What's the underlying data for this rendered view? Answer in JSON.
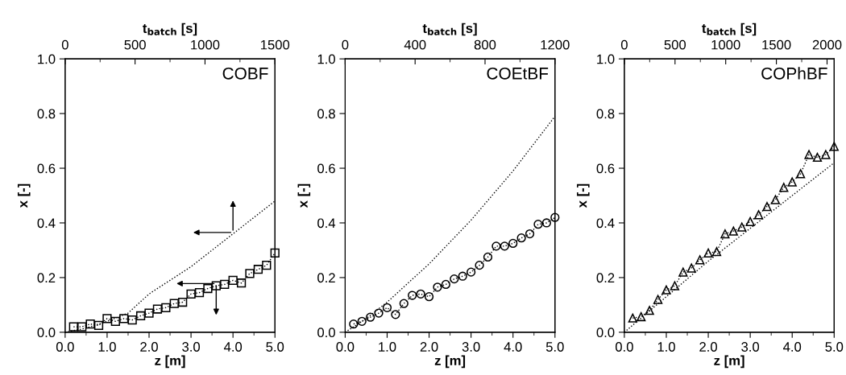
{
  "chart_data": [
    {
      "type": "line",
      "xlabel": "z [m]",
      "ylabel": "x [-]",
      "x2label": "t$_{batch}$ [s]",
      "annotations": [
        "COBF"
      ],
      "xlim": [
        0,
        5
      ],
      "xticks": [
        {
          "value": 0,
          "label": "0.0"
        },
        {
          "value": 1,
          "label": "1.0"
        },
        {
          "value": 2,
          "label": "2.0"
        },
        {
          "value": 3,
          "label": "3.0"
        },
        {
          "value": 4,
          "label": "4.0"
        },
        {
          "value": 5,
          "label": "5.0"
        }
      ],
      "ylim": [
        0,
        1
      ],
      "yticks": [
        {
          "value": 0,
          "label": "0.0"
        },
        {
          "value": 0.2,
          "label": "0.2"
        },
        {
          "value": 0.4,
          "label": "0.4"
        },
        {
          "value": 0.6,
          "label": "0.6"
        },
        {
          "value": 0.8,
          "label": "0.8"
        },
        {
          "value": 1,
          "label": "1.0"
        }
      ],
      "x2lim": [
        0,
        1500
      ],
      "x2ticks": [
        0,
        500,
        1000,
        1500
      ],
      "series": [
        {
          "color": "#000000",
          "marker": "square",
          "line_style": "dotted",
          "x": [
            0.2,
            0.4,
            0.6,
            0.8,
            1.0,
            1.2,
            1.4,
            1.6,
            1.8,
            2.0,
            2.2,
            2.4,
            2.6,
            2.8,
            3.0,
            3.2,
            3.4,
            3.6,
            3.8,
            4.0,
            4.2,
            4.4,
            4.6,
            4.8,
            5.0
          ],
          "values": [
            0.02,
            0.02,
            0.03,
            0.025,
            0.05,
            0.04,
            0.05,
            0.045,
            0.06,
            0.07,
            0.085,
            0.09,
            0.105,
            0.11,
            0.14,
            0.145,
            0.16,
            0.17,
            0.175,
            0.19,
            0.18,
            0.215,
            0.23,
            0.245,
            0.29
          ]
        },
        {
          "color": "#000000",
          "marker": "none",
          "line_style": "dotted",
          "axis": "x2",
          "x": [
            0,
            150,
            300,
            450,
            600,
            750,
            900,
            1050,
            1200,
            1350,
            1500
          ],
          "values": [
            0,
            0.015,
            0.04,
            0.07,
            0.14,
            0.19,
            0.24,
            0.3,
            0.36,
            0.42,
            0.48
          ]
        }
      ]
    },
    {
      "type": "line",
      "xlabel": "z [m]",
      "ylabel": "x [-]",
      "x2label": "t$_{batch}$ [s]",
      "annotations": [
        "COEtBF"
      ],
      "xlim": [
        0,
        5
      ],
      "xticks": [
        {
          "value": 0,
          "label": "0.0"
        },
        {
          "value": 1,
          "label": "1.0"
        },
        {
          "value": 2,
          "label": "2.0"
        },
        {
          "value": 3,
          "label": "3.0"
        },
        {
          "value": 4,
          "label": "4.0"
        },
        {
          "value": 5,
          "label": "5.0"
        }
      ],
      "ylim": [
        0,
        1
      ],
      "yticks": [
        {
          "value": 0,
          "label": "0.0"
        },
        {
          "value": 0.2,
          "label": "0.2"
        },
        {
          "value": 0.4,
          "label": "0.4"
        },
        {
          "value": 0.6,
          "label": "0.6"
        },
        {
          "value": 0.8,
          "label": "0.8"
        },
        {
          "value": 1,
          "label": "1.0"
        }
      ],
      "x2lim": [
        0,
        1200
      ],
      "x2ticks": [
        0,
        400,
        800,
        1200
      ],
      "series": [
        {
          "color": "#000000",
          "marker": "circle",
          "line_style": "dotted",
          "x": [
            0.2,
            0.4,
            0.6,
            0.8,
            1.0,
            1.2,
            1.4,
            1.6,
            1.8,
            2.0,
            2.2,
            2.4,
            2.6,
            2.8,
            3.0,
            3.2,
            3.4,
            3.6,
            3.8,
            4.0,
            4.2,
            4.4,
            4.6,
            4.8,
            5.0
          ],
          "values": [
            0.03,
            0.04,
            0.055,
            0.07,
            0.09,
            0.065,
            0.105,
            0.135,
            0.14,
            0.13,
            0.165,
            0.175,
            0.195,
            0.205,
            0.22,
            0.245,
            0.275,
            0.315,
            0.315,
            0.325,
            0.345,
            0.36,
            0.395,
            0.4,
            0.42
          ]
        },
        {
          "color": "#000000",
          "marker": "none",
          "line_style": "dotted",
          "axis": "x2",
          "x": [
            0,
            120,
            240,
            360,
            480,
            600,
            720,
            840,
            960,
            1080,
            1200
          ],
          "values": [
            0,
            0.05,
            0.11,
            0.18,
            0.25,
            0.33,
            0.41,
            0.5,
            0.59,
            0.69,
            0.79
          ]
        }
      ]
    },
    {
      "type": "line",
      "xlabel": "z [m]",
      "ylabel": "x [-]",
      "x2label": "t$_{batch}$ [s]",
      "annotations": [
        "COPhBF"
      ],
      "xlim": [
        0,
        5
      ],
      "xticks": [
        {
          "value": 0,
          "label": "0.0"
        },
        {
          "value": 1,
          "label": "1.0"
        },
        {
          "value": 2,
          "label": "2.0"
        },
        {
          "value": 3,
          "label": "3.0"
        },
        {
          "value": 4,
          "label": "4.0"
        },
        {
          "value": 5,
          "label": "5.0"
        }
      ],
      "ylim": [
        0,
        1
      ],
      "yticks": [
        {
          "value": 0,
          "label": "0.0"
        },
        {
          "value": 0.2,
          "label": "0.2"
        },
        {
          "value": 0.4,
          "label": "0.4"
        },
        {
          "value": 0.6,
          "label": "0.6"
        },
        {
          "value": 0.8,
          "label": "0.8"
        },
        {
          "value": 1,
          "label": "1.0"
        }
      ],
      "x2lim": [
        0,
        2070
      ],
      "x2ticks": [
        0,
        500,
        1000,
        1500,
        2000
      ],
      "series": [
        {
          "color": "#000000",
          "marker": "triangle",
          "line_style": "dotted",
          "x": [
            0.2,
            0.4,
            0.6,
            0.8,
            1.0,
            1.2,
            1.4,
            1.6,
            1.8,
            2.0,
            2.2,
            2.4,
            2.6,
            2.8,
            3.0,
            3.2,
            3.4,
            3.6,
            3.8,
            4.0,
            4.2,
            4.4,
            4.6,
            4.8,
            5.0
          ],
          "values": [
            0.052,
            0.057,
            0.08,
            0.12,
            0.155,
            0.17,
            0.22,
            0.235,
            0.265,
            0.29,
            0.295,
            0.36,
            0.37,
            0.385,
            0.405,
            0.43,
            0.46,
            0.485,
            0.53,
            0.55,
            0.58,
            0.65,
            0.64,
            0.65,
            0.68
          ]
        },
        {
          "color": "#000000",
          "marker": "none",
          "line_style": "dotted",
          "axis": "x2",
          "x": [
            0,
            414,
            828,
            1242,
            1656,
            2070
          ],
          "values": [
            0,
            0.13,
            0.26,
            0.38,
            0.5,
            0.62
          ]
        }
      ]
    }
  ]
}
